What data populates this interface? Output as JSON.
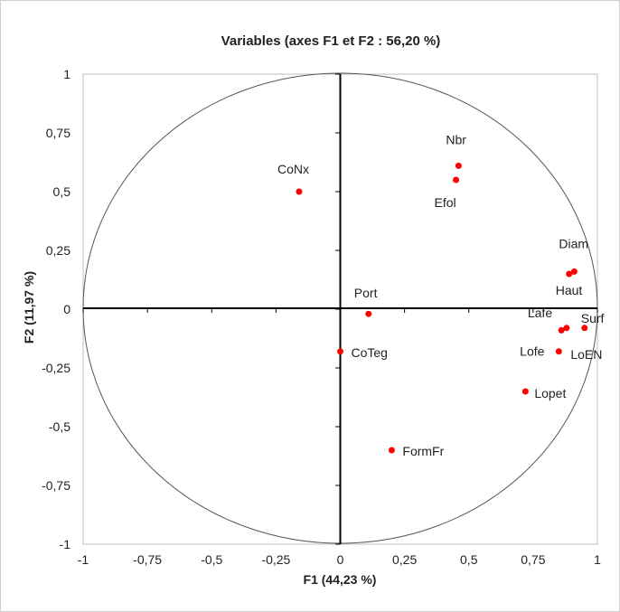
{
  "chart_data": {
    "type": "scatter",
    "title": "Variables (axes F1 et F2 : 56,20 %)",
    "xlabel": "F1 (44,23 %)",
    "ylabel": "F2 (11,97 %)",
    "xlim": [
      -1,
      1
    ],
    "ylim": [
      -1,
      1
    ],
    "x_ticks": [
      "-1",
      "-0,75",
      "-0,5",
      "-0,25",
      "0",
      "0,25",
      "0,5",
      "0,75",
      "1"
    ],
    "y_ticks": [
      "1",
      "0,75",
      "0,5",
      "0,25",
      "0",
      "-0,25",
      "-0,5",
      "-0,75",
      "-1"
    ],
    "grid": false,
    "unit_circle": true,
    "point_color": "#ff0000",
    "points": [
      {
        "label": "CoNx",
        "x": -0.16,
        "y": 0.5
      },
      {
        "label": "Nbr",
        "x": 0.46,
        "y": 0.61
      },
      {
        "label": "Efol",
        "x": 0.45,
        "y": 0.55
      },
      {
        "label": "Diam",
        "x": 0.91,
        "y": 0.16
      },
      {
        "label": "Haut",
        "x": 0.89,
        "y": 0.15
      },
      {
        "label": "Port",
        "x": 0.11,
        "y": -0.02
      },
      {
        "label": "Surf",
        "x": 0.95,
        "y": -0.08
      },
      {
        "label": "Lafe",
        "x": 0.88,
        "y": -0.08
      },
      {
        "label": "Lofe",
        "x": 0.86,
        "y": -0.09
      },
      {
        "label": "LoEN",
        "x": 0.85,
        "y": -0.18
      },
      {
        "label": "CoTeg",
        "x": 0.0,
        "y": -0.18
      },
      {
        "label": "Lopet",
        "x": 0.72,
        "y": -0.35
      },
      {
        "label": "FormFr",
        "x": 0.2,
        "y": -0.6
      }
    ]
  }
}
